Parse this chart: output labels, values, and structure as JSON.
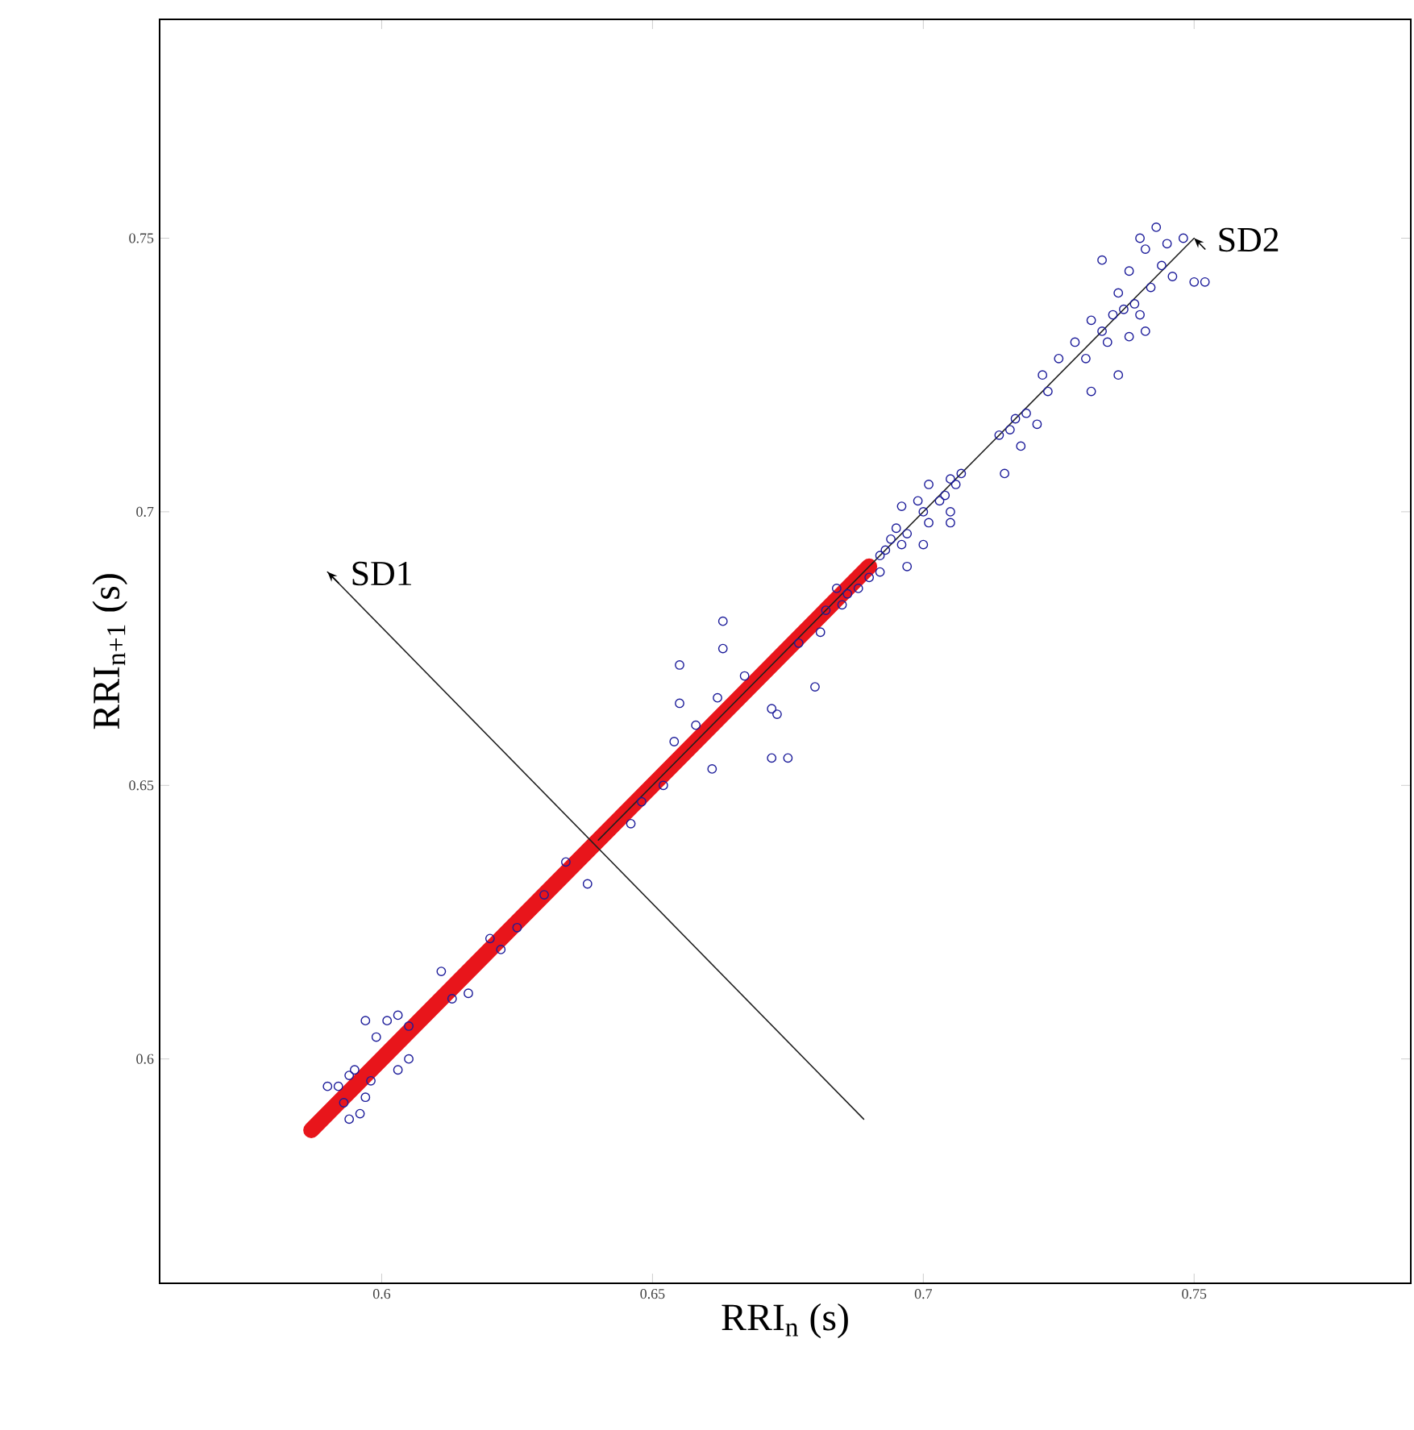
{
  "chart_data": {
    "type": "scatter",
    "xlabel": "RRI$_{n}$ (s)",
    "ylabel": "RRI$_{n+1}$ (s)",
    "xlim": [
      0.559,
      0.79
    ],
    "ylim": [
      0.559,
      0.79
    ],
    "xticks": [
      0.6,
      0.65,
      0.7,
      0.75
    ],
    "yticks": [
      0.6,
      0.65,
      0.7,
      0.75
    ],
    "grid": false,
    "series": [
      {
        "color": "#1c1c9a",
        "marker": "circle",
        "x": [
          0.743,
          0.74,
          0.745,
          0.748,
          0.741,
          0.733,
          0.738,
          0.744,
          0.746,
          0.75,
          0.752,
          0.736,
          0.739,
          0.742,
          0.737,
          0.735,
          0.74,
          0.731,
          0.733,
          0.728,
          0.734,
          0.738,
          0.741,
          0.73,
          0.736,
          0.731,
          0.725,
          0.722,
          0.723,
          0.719,
          0.717,
          0.716,
          0.714,
          0.721,
          0.718,
          0.715,
          0.707,
          0.706,
          0.705,
          0.704,
          0.703,
          0.701,
          0.699,
          0.7,
          0.701,
          0.705,
          0.705,
          0.7,
          0.697,
          0.696,
          0.695,
          0.694,
          0.693,
          0.692,
          0.696,
          0.697,
          0.692,
          0.69,
          0.688,
          0.686,
          0.684,
          0.682,
          0.681,
          0.68,
          0.673,
          0.672,
          0.672,
          0.675,
          0.661,
          0.663,
          0.663,
          0.655,
          0.655,
          0.654,
          0.652,
          0.646,
          0.638,
          0.63,
          0.622,
          0.62,
          0.616,
          0.611,
          0.605,
          0.603,
          0.601,
          0.597,
          0.599,
          0.603,
          0.605,
          0.59,
          0.592,
          0.594,
          0.595,
          0.593,
          0.596,
          0.594,
          0.597,
          0.598,
          0.662,
          0.667,
          0.677,
          0.685,
          0.613,
          0.625,
          0.634,
          0.648,
          0.658
        ],
        "values": [
          0.752,
          0.75,
          0.749,
          0.75,
          0.748,
          0.746,
          0.744,
          0.745,
          0.743,
          0.742,
          0.742,
          0.74,
          0.738,
          0.741,
          0.737,
          0.736,
          0.736,
          0.735,
          0.733,
          0.731,
          0.731,
          0.732,
          0.733,
          0.728,
          0.725,
          0.722,
          0.728,
          0.725,
          0.722,
          0.718,
          0.717,
          0.715,
          0.714,
          0.716,
          0.712,
          0.707,
          0.707,
          0.705,
          0.706,
          0.703,
          0.702,
          0.705,
          0.702,
          0.7,
          0.698,
          0.7,
          0.698,
          0.694,
          0.696,
          0.694,
          0.697,
          0.695,
          0.693,
          0.692,
          0.701,
          0.69,
          0.689,
          0.688,
          0.686,
          0.685,
          0.686,
          0.682,
          0.678,
          0.668,
          0.663,
          0.664,
          0.655,
          0.655,
          0.653,
          0.68,
          0.675,
          0.672,
          0.665,
          0.658,
          0.65,
          0.643,
          0.632,
          0.63,
          0.62,
          0.622,
          0.612,
          0.616,
          0.606,
          0.608,
          0.607,
          0.607,
          0.604,
          0.598,
          0.6,
          0.595,
          0.595,
          0.597,
          0.598,
          0.592,
          0.59,
          0.589,
          0.593,
          0.596,
          0.666,
          0.67,
          0.676,
          0.683,
          0.611,
          0.624,
          0.636,
          0.647,
          0.661
        ]
      },
      {
        "type": "line",
        "marker": "none",
        "color": "#e8151b",
        "x": [
          0.587,
          0.69
        ],
        "values": [
          0.587,
          0.69
        ]
      },
      {
        "type": "line",
        "color": "#202020",
        "x": [
          0.64,
          0.75
        ],
        "values": [
          0.64,
          0.75
        ]
      },
      {
        "type": "line",
        "color": "#202020",
        "x": [
          0.689,
          0.59
        ],
        "values": [
          0.589,
          0.689
        ]
      }
    ],
    "annotations": [
      {
        "text": "SD1",
        "x": 0.59,
        "y": 0.689
      },
      {
        "text": "SD2",
        "x": 0.75,
        "y": 0.75
      }
    ]
  }
}
